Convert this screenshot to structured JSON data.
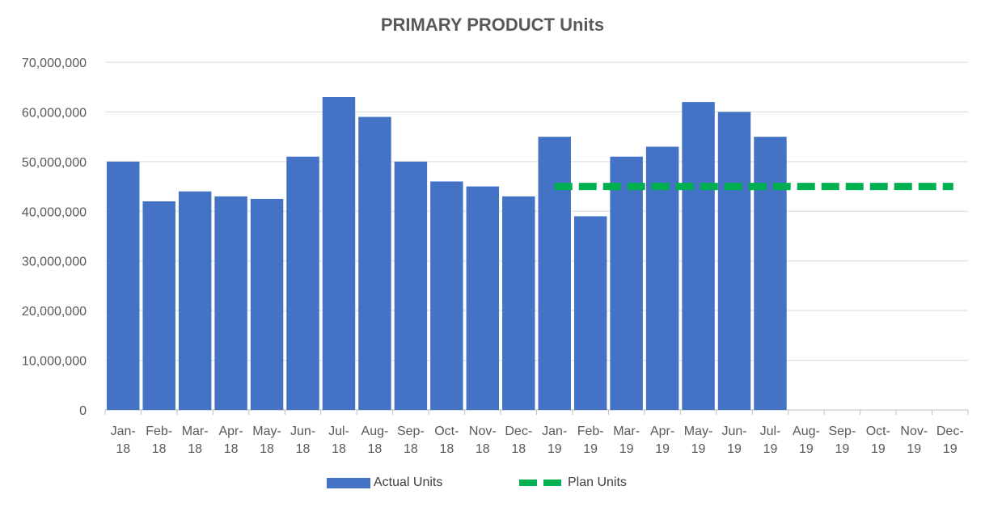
{
  "chart_data": {
    "type": "bar",
    "title": "PRIMARY PRODUCT Units",
    "categories": [
      "Jan-18",
      "Feb-18",
      "Mar-18",
      "Apr-18",
      "May-18",
      "Jun-18",
      "Jul-18",
      "Aug-18",
      "Sep-18",
      "Oct-18",
      "Nov-18",
      "Dec-18",
      "Jan-19",
      "Feb-19",
      "Mar-19",
      "Apr-19",
      "May-19",
      "Jun-19",
      "Jul-19",
      "Aug-19",
      "Sep-19",
      "Oct-19",
      "Nov-19",
      "Dec-19"
    ],
    "series": [
      {
        "name": "Actual Units",
        "type": "bar",
        "color": "#4472C4",
        "values": [
          50000000,
          42000000,
          44000000,
          43000000,
          42500000,
          51000000,
          63000000,
          59000000,
          50000000,
          46000000,
          45000000,
          43000000,
          55000000,
          39000000,
          51000000,
          53000000,
          62000000,
          60000000,
          55000000,
          null,
          null,
          null,
          null,
          null
        ]
      },
      {
        "name": "Plan Units",
        "type": "line",
        "style": "dashed",
        "color": "#00B050",
        "values": [
          null,
          null,
          null,
          null,
          null,
          null,
          null,
          null,
          null,
          null,
          null,
          null,
          45000000,
          45000000,
          45000000,
          45000000,
          45000000,
          45000000,
          45000000,
          45000000,
          45000000,
          45000000,
          45000000,
          45000000
        ]
      }
    ],
    "xlabel": "",
    "ylabel": "",
    "ylim": [
      0,
      70000000
    ],
    "yticks": [
      0,
      10000000,
      20000000,
      30000000,
      40000000,
      50000000,
      60000000,
      70000000
    ],
    "ytick_labels": [
      "0",
      "10,000,000",
      "20,000,000",
      "30,000,000",
      "40,000,000",
      "50,000,000",
      "60,000,000",
      "70,000,000"
    ],
    "grid": true,
    "legend_position": "bottom"
  },
  "legend": {
    "actual_label": "Actual Units",
    "plan_label": "Plan Units"
  }
}
